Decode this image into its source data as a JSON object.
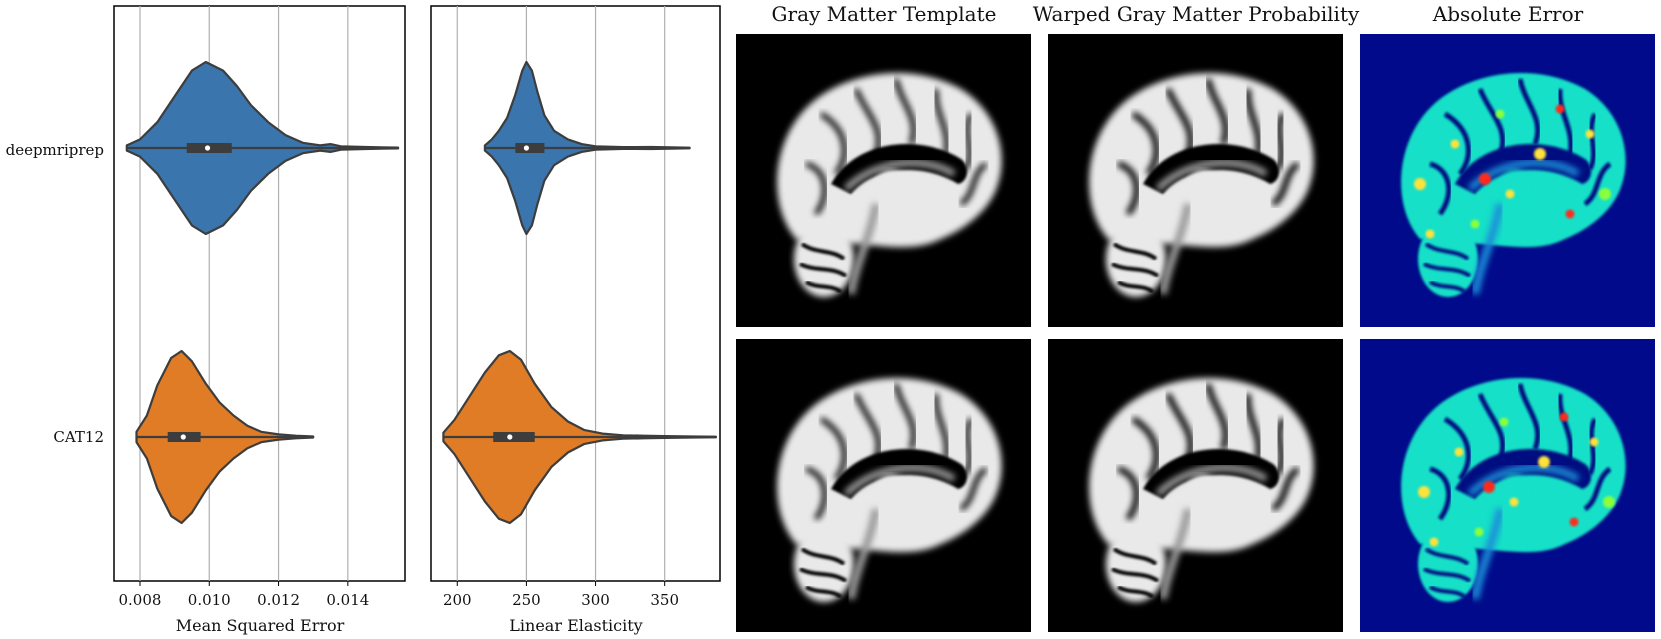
{
  "image_titles": [
    "Gray Matter Template",
    "Warped Gray Matter Probability",
    "Absolute Error"
  ],
  "chart_data": [
    {
      "type": "violin",
      "xlabel": "Mean Squared Error",
      "categories": [
        "deepmriprep",
        "CAT12"
      ],
      "xticks": [
        "0.008",
        "0.010",
        "0.012",
        "0.014"
      ],
      "xlim": [
        0.00725,
        0.01565
      ],
      "grid": "vertical",
      "series": [
        {
          "name": "deepmriprep",
          "color": "#3a75ae",
          "min": 0.00762,
          "q1": 0.00935,
          "median": 0.00995,
          "q3": 0.01065,
          "max": 0.01545,
          "whisker": [
            0.00762,
            0.01545
          ],
          "density": [
            [
              0.00762,
              0.03
            ],
            [
              0.008,
              0.1
            ],
            [
              0.0085,
              0.3
            ],
            [
              0.009,
              0.6
            ],
            [
              0.0095,
              0.9
            ],
            [
              0.0099,
              1.0
            ],
            [
              0.0104,
              0.9
            ],
            [
              0.0108,
              0.72
            ],
            [
              0.0112,
              0.5
            ],
            [
              0.0117,
              0.3
            ],
            [
              0.0122,
              0.15
            ],
            [
              0.0127,
              0.06
            ],
            [
              0.0132,
              0.03
            ],
            [
              0.0135,
              0.045
            ],
            [
              0.0138,
              0.02
            ],
            [
              0.0145,
              0.012
            ],
            [
              0.01545,
              0.005
            ]
          ]
        },
        {
          "name": "CAT12",
          "color": "#e07b26",
          "min": 0.0079,
          "q1": 0.0088,
          "median": 0.00925,
          "q3": 0.00975,
          "max": 0.013,
          "whisker": [
            0.0079,
            0.013
          ],
          "density": [
            [
              0.0079,
              0.06
            ],
            [
              0.0082,
              0.25
            ],
            [
              0.0085,
              0.6
            ],
            [
              0.0089,
              0.92
            ],
            [
              0.0092,
              1.0
            ],
            [
              0.0095,
              0.88
            ],
            [
              0.0099,
              0.62
            ],
            [
              0.0103,
              0.4
            ],
            [
              0.0107,
              0.25
            ],
            [
              0.0111,
              0.13
            ],
            [
              0.0115,
              0.06
            ],
            [
              0.012,
              0.03
            ],
            [
              0.0125,
              0.015
            ],
            [
              0.013,
              0.006
            ]
          ]
        }
      ]
    },
    {
      "type": "violin",
      "xlabel": "Linear Elasticity",
      "categories": [
        "deepmriprep",
        "CAT12"
      ],
      "xticks": [
        "200",
        "250",
        "300",
        "350"
      ],
      "xlim": [
        181,
        390
      ],
      "grid": "vertical",
      "series": [
        {
          "name": "deepmriprep",
          "color": "#3a75ae",
          "min": 220,
          "q1": 242,
          "median": 250,
          "q3": 263,
          "max": 368,
          "whisker": [
            220,
            368
          ],
          "density": [
            [
              220,
              0.03
            ],
            [
              225,
              0.1
            ],
            [
              230,
              0.2
            ],
            [
              236,
              0.35
            ],
            [
              242,
              0.62
            ],
            [
              247,
              0.9
            ],
            [
              250,
              1.0
            ],
            [
              254,
              0.9
            ],
            [
              258,
              0.65
            ],
            [
              263,
              0.38
            ],
            [
              270,
              0.2
            ],
            [
              280,
              0.1
            ],
            [
              290,
              0.045
            ],
            [
              300,
              0.02
            ],
            [
              320,
              0.01
            ],
            [
              340,
              0.012
            ],
            [
              355,
              0.008
            ],
            [
              368,
              0.004
            ]
          ]
        },
        {
          "name": "CAT12",
          "color": "#e07b26",
          "min": 190,
          "q1": 226,
          "median": 238,
          "q3": 256,
          "max": 387,
          "whisker": [
            190,
            387
          ],
          "density": [
            [
              190,
              0.05
            ],
            [
              198,
              0.2
            ],
            [
              208,
              0.45
            ],
            [
              220,
              0.75
            ],
            [
              230,
              0.95
            ],
            [
              238,
              1.0
            ],
            [
              246,
              0.9
            ],
            [
              256,
              0.62
            ],
            [
              268,
              0.35
            ],
            [
              280,
              0.18
            ],
            [
              292,
              0.08
            ],
            [
              305,
              0.04
            ],
            [
              320,
              0.02
            ],
            [
              335,
              0.015
            ],
            [
              350,
              0.01
            ],
            [
              370,
              0.006
            ],
            [
              387,
              0.003
            ]
          ]
        }
      ]
    }
  ]
}
